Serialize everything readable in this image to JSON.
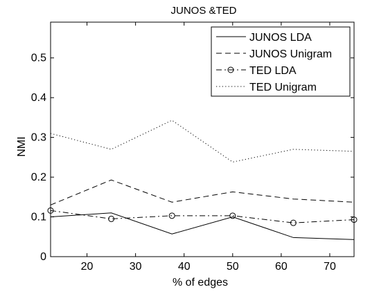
{
  "chart_data": {
    "type": "line",
    "title": "JUNOS &TED",
    "xlabel": "% of edges",
    "ylabel": "NMI",
    "xlim": [
      12.5,
      75
    ],
    "ylim": [
      0,
      0.59
    ],
    "x": [
      12.5,
      25,
      37.5,
      50,
      62.5,
      75
    ],
    "xticks": [
      20,
      30,
      40,
      50,
      60,
      70
    ],
    "yticks": [
      0,
      0.1,
      0.2,
      0.3,
      0.4,
      0.5
    ],
    "xtick_labels": [
      "20",
      "30",
      "40",
      "50",
      "60",
      "70"
    ],
    "ytick_labels": [
      "0",
      "0.1",
      "0.2",
      "0.3",
      "0.4",
      "0.5"
    ],
    "grid": false,
    "legend_position": "top-right",
    "series": [
      {
        "name": "JUNOS LDA",
        "style": "solid",
        "marker": "none",
        "values": [
          0.1,
          0.11,
          0.057,
          0.1,
          0.048,
          0.043
        ]
      },
      {
        "name": "JUNOS Unigram",
        "style": "dashed",
        "marker": "none",
        "values": [
          0.13,
          0.193,
          0.137,
          0.163,
          0.145,
          0.137
        ]
      },
      {
        "name": "TED LDA",
        "style": "dashdot",
        "marker": "circle",
        "values": [
          0.116,
          0.095,
          0.103,
          0.103,
          0.085,
          0.093
        ]
      },
      {
        "name": "TED Unigram",
        "style": "dotted",
        "marker": "none",
        "values": [
          0.31,
          0.27,
          0.343,
          0.238,
          0.27,
          0.265
        ]
      }
    ]
  }
}
